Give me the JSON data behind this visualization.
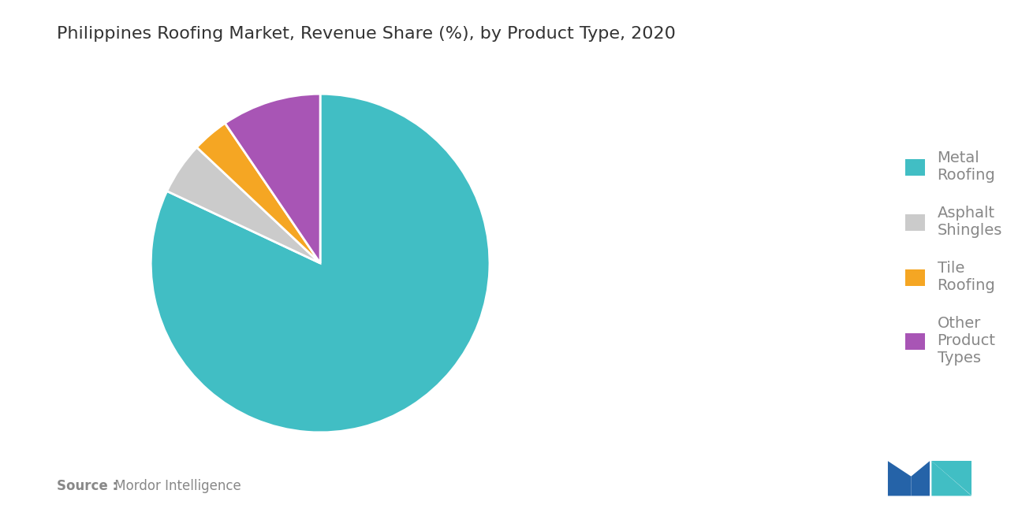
{
  "title": "Philippines Roofing Market, Revenue Share (%), by Product Type, 2020",
  "slices": [
    {
      "label": "Metal\nRoofing",
      "value": 82.0,
      "color": "#41BEC4"
    },
    {
      "label": "Asphalt\nShingles",
      "value": 5.0,
      "color": "#CBCBCB"
    },
    {
      "label": "Tile\nRoofing",
      "value": 3.5,
      "color": "#F5A623"
    },
    {
      "label": "Other\nProduct\nTypes",
      "value": 9.5,
      "color": "#A855B5"
    }
  ],
  "background_color": "#FFFFFF",
  "title_fontsize": 16,
  "title_color": "#333333",
  "legend_text_color": "#888888",
  "legend_fontsize": 14,
  "source_bold": "Source :",
  "source_normal": " Mordor Intelligence",
  "source_fontsize": 12,
  "source_color": "#888888"
}
